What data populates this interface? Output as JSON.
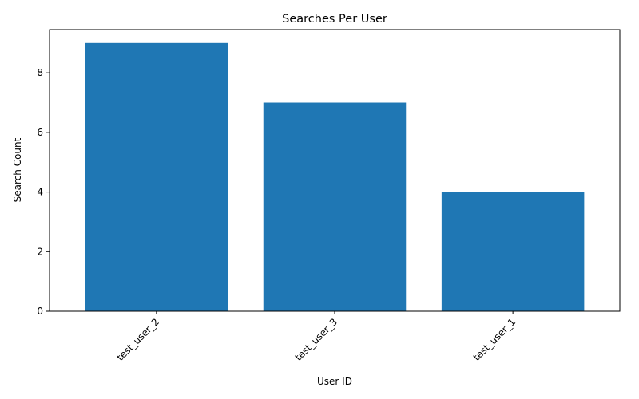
{
  "chart_data": {
    "type": "bar",
    "title": "Searches Per User",
    "xlabel": "User ID",
    "ylabel": "Search Count",
    "categories": [
      "test_user_2",
      "test_user_3",
      "test_user_1"
    ],
    "values": [
      9,
      7,
      4
    ],
    "ylim": [
      0,
      9.45
    ],
    "yticks": [
      0,
      2,
      4,
      6,
      8
    ],
    "bar_color": "#1f77b4",
    "grid": false,
    "legend": "none"
  }
}
